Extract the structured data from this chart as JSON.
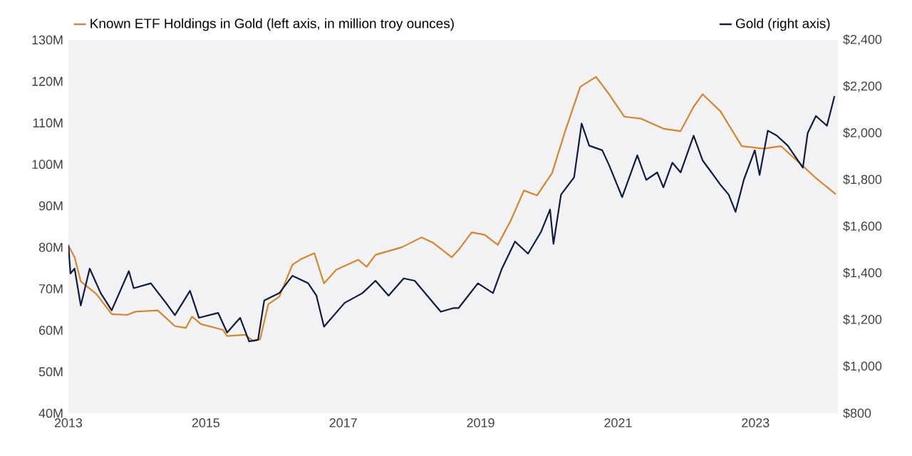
{
  "chart_data": {
    "type": "line",
    "legend": "top",
    "xlim": [
      2013,
      2024.2
    ],
    "xticks": [
      2013,
      2015,
      2017,
      2019,
      2021,
      2023
    ],
    "ylim": [
      40,
      130
    ],
    "yticks": [
      {
        "value": 40,
        "label": "40M"
      },
      {
        "value": 50,
        "label": "50M"
      },
      {
        "value": 60,
        "label": "60M"
      },
      {
        "value": 70,
        "label": "70M"
      },
      {
        "value": 80,
        "label": "80M"
      },
      {
        "value": 90,
        "label": "90M"
      },
      {
        "value": 100,
        "label": "100M"
      },
      {
        "value": 110,
        "label": "110M"
      },
      {
        "value": 120,
        "label": "120M"
      },
      {
        "value": 130,
        "label": "130M"
      }
    ],
    "y2lim": [
      800,
      2400
    ],
    "y2ticks": [
      {
        "value": 800,
        "label": "$800"
      },
      {
        "value": 1000,
        "label": "$1,000"
      },
      {
        "value": 1200,
        "label": "$1,200"
      },
      {
        "value": 1400,
        "label": "$1,400"
      },
      {
        "value": 1600,
        "label": "$1,600"
      },
      {
        "value": 1800,
        "label": "$1,800"
      },
      {
        "value": 2000,
        "label": "$2,000"
      },
      {
        "value": 2200,
        "label": "$2,200"
      },
      {
        "value": 2400,
        "label": "$2,400"
      }
    ],
    "series": [
      {
        "name": "Known ETF Holdings in Gold (left axis, in million troy ounces)",
        "color": "#d4862a",
        "x": [
          2013.0,
          2013.09,
          2013.18,
          2013.41,
          2013.63,
          2013.85,
          2013.98,
          2014.3,
          2014.55,
          2014.71,
          2014.8,
          2014.93,
          2015.25,
          2015.31,
          2015.57,
          2015.69,
          2015.79,
          2015.91,
          2016.07,
          2016.26,
          2016.39,
          2016.58,
          2016.72,
          2016.9,
          2017.22,
          2017.34,
          2017.47,
          2017.85,
          2018.14,
          2018.3,
          2018.58,
          2018.68,
          2018.87,
          2019.06,
          2019.25,
          2019.44,
          2019.63,
          2019.82,
          2020.04,
          2020.23,
          2020.45,
          2020.68,
          2020.87,
          2021.09,
          2021.34,
          2021.66,
          2021.91,
          2022.1,
          2022.23,
          2022.49,
          2022.8,
          2023.12,
          2023.37,
          2023.69,
          2023.88,
          2024.17
        ],
        "values": [
          80.4,
          77.6,
          71.8,
          68.7,
          63.9,
          63.7,
          64.5,
          64.8,
          61.0,
          60.6,
          63.3,
          61.5,
          60.1,
          58.6,
          58.9,
          57.4,
          57.8,
          66.3,
          68.1,
          75.8,
          77.2,
          78.6,
          71.3,
          74.6,
          77.0,
          75.3,
          78.2,
          80.0,
          82.4,
          81.2,
          77.6,
          79.4,
          83.6,
          83.0,
          80.6,
          86.5,
          93.7,
          92.5,
          97.9,
          108.0,
          118.7,
          121.1,
          116.9,
          111.5,
          111.0,
          108.6,
          108.0,
          113.9,
          116.9,
          112.8,
          104.4,
          103.8,
          104.4,
          99.6,
          96.7,
          92.8
        ]
      },
      {
        "name": "Gold (right axis)",
        "color": "#0d1b3e",
        "axis": "y2",
        "x": [
          2013.0,
          2013.03,
          2013.09,
          2013.18,
          2013.31,
          2013.47,
          2013.63,
          2013.88,
          2013.95,
          2014.2,
          2014.42,
          2014.55,
          2014.77,
          2014.9,
          2015.18,
          2015.31,
          2015.5,
          2015.63,
          2015.76,
          2015.85,
          2016.07,
          2016.26,
          2016.49,
          2016.61,
          2016.72,
          2017.02,
          2017.28,
          2017.47,
          2017.66,
          2017.88,
          2018.04,
          2018.42,
          2018.61,
          2018.68,
          2018.96,
          2019.18,
          2019.31,
          2019.5,
          2019.69,
          2019.88,
          2020.01,
          2020.06,
          2020.17,
          2020.36,
          2020.47,
          2020.58,
          2020.77,
          2020.87,
          2021.06,
          2021.28,
          2021.41,
          2021.57,
          2021.66,
          2021.79,
          2021.91,
          2022.1,
          2022.23,
          2022.36,
          2022.49,
          2022.61,
          2022.71,
          2022.83,
          2022.99,
          2023.06,
          2023.18,
          2023.31,
          2023.47,
          2023.69,
          2023.76,
          2023.88,
          2024.04,
          2024.15
        ],
        "values": [
          1521,
          1399,
          1420,
          1262,
          1420,
          1315,
          1241,
          1409,
          1336,
          1357,
          1273,
          1220,
          1325,
          1209,
          1230,
          1146,
          1209,
          1108,
          1115,
          1283,
          1315,
          1389,
          1357,
          1304,
          1171,
          1273,
          1315,
          1368,
          1304,
          1378,
          1368,
          1235,
          1251,
          1251,
          1357,
          1315,
          1420,
          1536,
          1484,
          1578,
          1673,
          1526,
          1737,
          1811,
          2042,
          1947,
          1927,
          1863,
          1726,
          1906,
          1800,
          1832,
          1768,
          1874,
          1832,
          1990,
          1884,
          1832,
          1779,
          1737,
          1663,
          1800,
          1927,
          1821,
          2011,
          1990,
          1947,
          1852,
          2001,
          2074,
          2032,
          2159
        ]
      }
    ]
  }
}
